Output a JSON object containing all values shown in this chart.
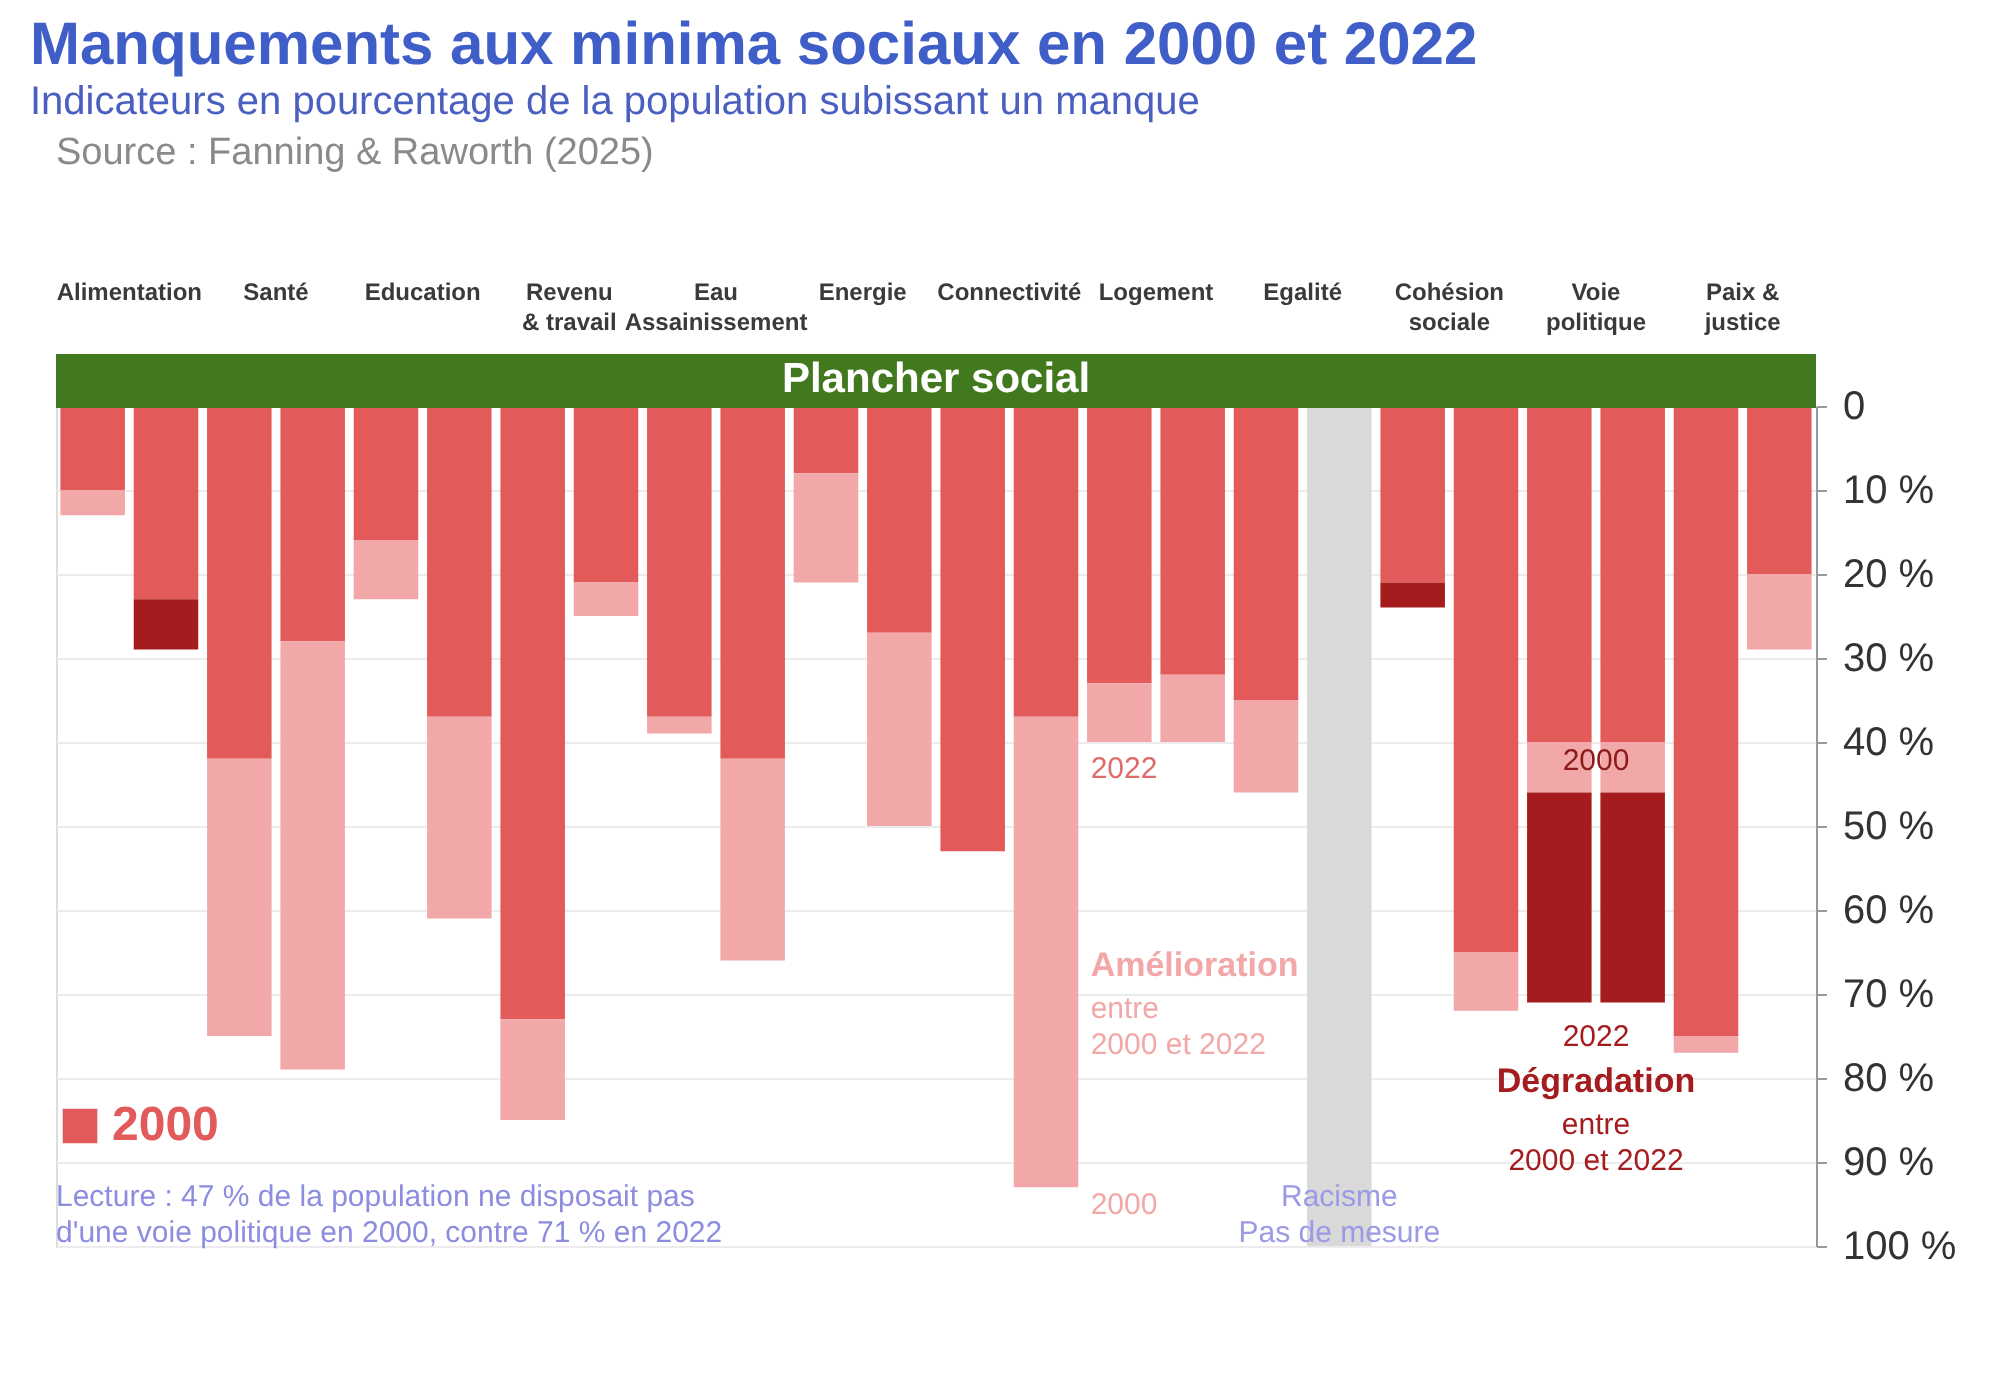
{
  "chart_data": {
    "type": "bar",
    "stacked": true,
    "title": "Manquements aux minima sociaux en 2000 et 2022",
    "subtitle": "Indicateurs en pourcentage de la population subissant un manque",
    "categories": [
      "Alimentation",
      null,
      "Santé",
      null,
      "Education",
      null,
      "Revenu\n& travail",
      null,
      "Eau\nAssainissement",
      null,
      "Energie",
      null,
      "Connectivité",
      null,
      "Logement",
      null,
      "Egalité",
      null,
      "Cohésion\nsociale",
      null,
      "Voie\npolitique",
      null,
      "Paix &\njustice",
      null
    ],
    "series": [
      {
        "name": "2000",
        "color": "#e35a5a",
        "values": [
          10,
          23,
          42,
          28,
          16,
          37,
          73,
          21,
          37,
          42,
          8,
          27,
          53,
          37,
          33,
          32,
          35,
          null,
          21,
          65,
          40,
          40,
          75,
          20
        ]
      },
      {
        "color": "#f2a8a8",
        "values": [
          3,
          null,
          33,
          51,
          7,
          24,
          12,
          4,
          2,
          24,
          13,
          23,
          null,
          56,
          7,
          8,
          11,
          null,
          null,
          7,
          6,
          6,
          2,
          9
        ]
      },
      {
        "color": "#a51c1f",
        "values": [
          null,
          6,
          null,
          null,
          null,
          null,
          null,
          null,
          null,
          null,
          null,
          null,
          null,
          null,
          null,
          null,
          null,
          null,
          3,
          null,
          25,
          25,
          null,
          null
        ]
      },
      {
        "color": "#d9d9d9",
        "values": [
          null,
          null,
          null,
          null,
          null,
          null,
          null,
          null,
          null,
          null,
          null,
          null,
          null,
          null,
          null,
          null,
          null,
          100,
          null,
          null,
          null,
          null,
          null,
          null
        ]
      }
    ],
    "ylim": [
      100,
      0
    ],
    "yticks": [
      0,
      {
        "value": 10,
        "label": "10 %"
      },
      {
        "value": 20,
        "label": "20 %"
      },
      {
        "value": 30,
        "label": "30 %"
      },
      {
        "value": 40,
        "label": "40 %"
      },
      {
        "value": 50,
        "label": "50 %"
      },
      {
        "value": 60,
        "label": "60 %"
      },
      {
        "value": 70,
        "label": "70 %"
      },
      {
        "value": 80,
        "label": "80 %"
      },
      {
        "value": 90,
        "label": "90 %"
      },
      {
        "value": 100,
        "label": "100 %"
      }
    ],
    "grid": "y",
    "legend": "bottom left",
    "ref_lines": [
      {
        "axis": "y",
        "value": 0,
        "label": "Plancher social",
        "color": "#42791f"
      }
    ],
    "annotations": [
      "Source : Fanning & Raworth (2025)",
      "2022",
      "2000",
      "Amélioration",
      "entre\n2000 et 2022",
      "Racisme\nPas de mesure",
      "2000",
      "2022",
      "Dégradation",
      "entre\n2000 et 2022",
      "Lecture : 47 % de la population ne disposait pas\nd'une voie politique en 2000, contre 71 % en 2022"
    ]
  }
}
